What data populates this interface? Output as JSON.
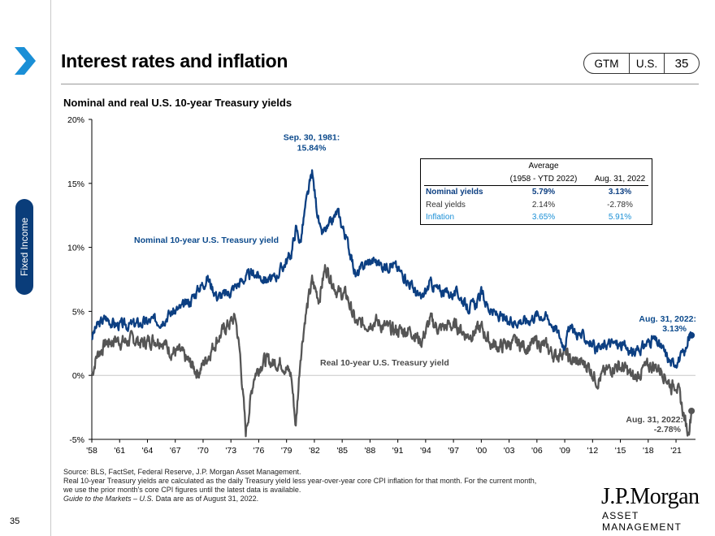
{
  "header": {
    "title": "Interest rates and inflation",
    "badges": [
      "GTM",
      "U.S.",
      "35"
    ]
  },
  "section_tab": "Fixed Income",
  "chart_data": {
    "type": "line",
    "title": "Nominal and real U.S. 10-year Treasury yields",
    "ylim": [
      -5,
      20
    ],
    "y_ticks": [
      "20%",
      "15%",
      "10%",
      "5%",
      "0%",
      "-5%"
    ],
    "x_ticks": [
      "'58",
      "'61",
      "'64",
      "'67",
      "'70",
      "'73",
      "'76",
      "'79",
      "'82",
      "'85",
      "'88",
      "'91",
      "'94",
      "'97",
      "'00",
      "'03",
      "'06",
      "'09",
      "'12",
      "'15",
      "'18",
      "'21"
    ],
    "colors": {
      "nominal": "#0c3f82",
      "real": "#555555",
      "inflation": "#1a8fd6",
      "nominal_label": "#0c4a8c",
      "real_label": "#4a4a4a"
    },
    "series": [
      {
        "name": "Nominal 10-year U.S. Treasury yield",
        "years": [
          1958.0,
          1958.5,
          1959.5,
          1960.5,
          1961.5,
          1962.5,
          1963.5,
          1964.5,
          1965.5,
          1966.5,
          1967.5,
          1968.5,
          1969.5,
          1970.5,
          1971.5,
          1972.5,
          1973.5,
          1974.5,
          1975.5,
          1976.5,
          1977.5,
          1978.5,
          1979.5,
          1980.0,
          1980.5,
          1981.0,
          1981.75,
          1982.2,
          1982.7,
          1983.5,
          1984.5,
          1985.5,
          1986.5,
          1987.5,
          1988.5,
          1989.5,
          1990.5,
          1991.5,
          1992.5,
          1993.5,
          1994.5,
          1995.5,
          1996.5,
          1997.5,
          1998.5,
          1999.5,
          2000.0,
          2001.0,
          2002.0,
          2003.0,
          2004.0,
          2005.0,
          2006.0,
          2007.0,
          2008.0,
          2008.9,
          2009.5,
          2010.5,
          2011.5,
          2012.5,
          2013.5,
          2014.5,
          2015.5,
          2016.5,
          2017.5,
          2018.5,
          2019.5,
          2020.5,
          2021.5,
          2022.0,
          2022.3,
          2022.67
        ],
        "values": [
          3.0,
          3.8,
          4.5,
          4.0,
          3.9,
          4.0,
          4.1,
          4.3,
          4.3,
          4.9,
          5.2,
          5.7,
          6.8,
          7.6,
          6.2,
          6.3,
          7.0,
          7.6,
          8.0,
          7.6,
          7.4,
          8.4,
          9.5,
          11.5,
          10.4,
          13.0,
          15.84,
          13.4,
          11.0,
          11.5,
          12.8,
          10.6,
          7.7,
          8.8,
          9.0,
          8.5,
          8.7,
          7.9,
          7.0,
          5.9,
          7.2,
          6.6,
          6.4,
          6.4,
          5.3,
          5.6,
          6.4,
          5.0,
          4.6,
          4.0,
          4.3,
          4.3,
          4.8,
          4.6,
          3.7,
          2.4,
          3.6,
          3.2,
          2.8,
          1.8,
          2.5,
          2.5,
          2.2,
          1.7,
          2.3,
          2.9,
          2.1,
          0.9,
          1.4,
          1.8,
          2.8,
          3.13
        ]
      },
      {
        "name": "Real 10-year U.S. Treasury yield",
        "years": [
          1958.0,
          1958.5,
          1959.5,
          1960.5,
          1961.5,
          1962.5,
          1963.5,
          1964.5,
          1965.5,
          1966.5,
          1967.5,
          1968.5,
          1969.5,
          1970.5,
          1971.5,
          1972.5,
          1973.5,
          1974.0,
          1974.6,
          1975.5,
          1976.5,
          1977.5,
          1978.5,
          1979.5,
          1980.0,
          1980.5,
          1981.0,
          1981.75,
          1982.5,
          1983.2,
          1984.5,
          1985.5,
          1986.5,
          1987.5,
          1988.5,
          1989.5,
          1990.5,
          1991.5,
          1992.5,
          1993.5,
          1994.5,
          1995.5,
          1996.5,
          1997.5,
          1998.5,
          1999.5,
          2000.0,
          2001.0,
          2002.0,
          2003.0,
          2004.0,
          2005.0,
          2006.0,
          2007.0,
          2008.0,
          2008.9,
          2009.5,
          2010.5,
          2011.5,
          2012.5,
          2013.5,
          2014.5,
          2015.5,
          2016.5,
          2017.5,
          2018.5,
          2019.5,
          2020.5,
          2021.0,
          2021.5,
          2022.0,
          2022.3,
          2022.67
        ],
        "values": [
          0.0,
          1.5,
          2.5,
          2.8,
          2.6,
          2.8,
          2.5,
          2.8,
          2.8,
          1.9,
          1.8,
          1.0,
          0.2,
          1.5,
          2.8,
          3.8,
          4.5,
          1.5,
          -4.5,
          0.0,
          1.2,
          1.0,
          1.0,
          0.0,
          -4.0,
          1.5,
          4.5,
          7.3,
          6.0,
          8.5,
          6.5,
          6.2,
          4.0,
          4.0,
          4.3,
          3.8,
          3.5,
          3.5,
          3.5,
          2.6,
          4.3,
          3.6,
          3.9,
          3.8,
          3.1,
          3.5,
          3.7,
          2.5,
          2.2,
          2.5,
          2.5,
          2.2,
          2.6,
          2.2,
          1.5,
          2.0,
          1.2,
          1.0,
          0.8,
          -0.4,
          0.3,
          0.8,
          0.5,
          -0.3,
          0.5,
          0.8,
          0.4,
          -0.9,
          -0.5,
          -2.0,
          -3.6,
          -4.5,
          -2.78
        ]
      }
    ],
    "annotations": {
      "peak": {
        "line1": "Sep. 30, 1981:",
        "line2": "15.84%"
      },
      "nominal_label": "Nominal 10-year U.S. Treasury yield",
      "real_label": "Real 10-year U.S. Treasury yield",
      "nominal_end": {
        "line1": "Aug. 31, 2022:",
        "line2": "3.13%"
      },
      "real_end": {
        "line1": "Aug. 31, 2022:",
        "line2": "-2.78%"
      }
    }
  },
  "average_table": {
    "header_top": "Average",
    "col1": "(1958 - YTD 2022)",
    "col2": "Aug. 31, 2022",
    "rows": [
      {
        "label": "Nominal yields",
        "avg": "5.79%",
        "current": "3.13%"
      },
      {
        "label": "Real yields",
        "avg": "2.14%",
        "current": "-2.78%"
      },
      {
        "label": "Inflation",
        "avg": "3.65%",
        "current": "5.91%"
      }
    ]
  },
  "footnotes": {
    "line1": "Source: BLS, FactSet, Federal Reserve, J.P. Morgan Asset Management.",
    "line2": "Real 10-year Treasury yields are calculated as the daily Treasury yield less year-over-year core CPI inflation for that month. For the current month,",
    "line3": "we use the prior month's core CPI figures until the latest data is available.",
    "line4_italic": "Guide to the Markets – U.S.",
    "line4_rest": " Data are as of August 31, 2022."
  },
  "page_number": "35",
  "logo": {
    "line1": "J.P.Morgan",
    "line2": "ASSET MANAGEMENT"
  }
}
